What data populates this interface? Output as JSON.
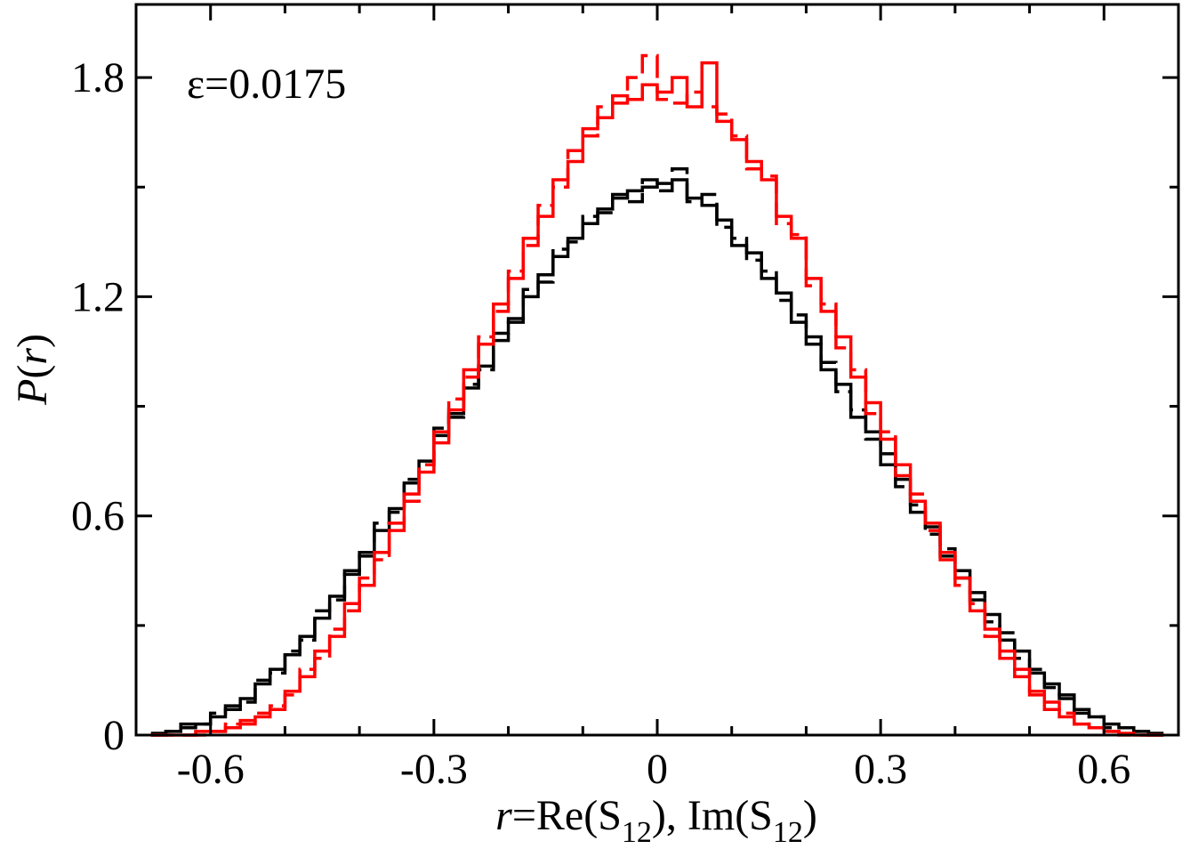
{
  "chart_data": {
    "type": "line",
    "subtype": "step-histogram",
    "title": "",
    "annotation": "ε=0.0175",
    "xlabel_parts": [
      "r",
      "=Re(S",
      "12",
      "), Im(S",
      "12",
      ")"
    ],
    "ylabel_parts": [
      "P",
      "(",
      "r",
      ")"
    ],
    "xlim": [
      -0.7,
      0.7
    ],
    "ylim": [
      0,
      2.0
    ],
    "x_major_ticks": [
      -0.6,
      -0.3,
      0,
      0.3,
      0.6
    ],
    "x_tick_labels": [
      "-0.6",
      "-0.3",
      "0",
      "0.3",
      "0.6"
    ],
    "x_minor_step": 0.1,
    "y_major_ticks": [
      0,
      0.6,
      1.2,
      1.8
    ],
    "y_tick_labels": [
      "0",
      "0.6",
      "1.2",
      "1.8"
    ],
    "y_minor_step": 0.3,
    "grid": false,
    "bin_start": -0.68,
    "bin_width": 0.02,
    "series": [
      {
        "name": "black-solid",
        "color": "#000000",
        "dashed": false,
        "values": [
          0.005,
          0.01,
          0.02,
          0.03,
          0.05,
          0.07,
          0.1,
          0.14,
          0.18,
          0.22,
          0.27,
          0.32,
          0.38,
          0.44,
          0.5,
          0.56,
          0.62,
          0.69,
          0.75,
          0.82,
          0.88,
          0.95,
          1.01,
          1.08,
          1.14,
          1.2,
          1.26,
          1.31,
          1.36,
          1.4,
          1.44,
          1.47,
          1.49,
          1.5,
          1.51,
          1.52,
          1.47,
          1.45,
          1.41,
          1.34,
          1.32,
          1.25,
          1.21,
          1.13,
          1.09,
          1.0,
          0.96,
          0.87,
          0.83,
          0.74,
          0.7,
          0.61,
          0.57,
          0.49,
          0.45,
          0.37,
          0.33,
          0.26,
          0.23,
          0.17,
          0.14,
          0.1,
          0.07,
          0.05,
          0.03,
          0.02,
          0.01,
          0.005
        ]
      },
      {
        "name": "black-dashed",
        "color": "#000000",
        "dashed": true,
        "values": [
          0,
          0.01,
          0.03,
          0.03,
          0.06,
          0.08,
          0.09,
          0.15,
          0.17,
          0.23,
          0.26,
          0.34,
          0.37,
          0.45,
          0.49,
          0.58,
          0.61,
          0.7,
          0.74,
          0.84,
          0.87,
          0.96,
          1.0,
          1.1,
          1.13,
          1.22,
          1.24,
          1.33,
          1.35,
          1.42,
          1.43,
          1.48,
          1.46,
          1.52,
          1.49,
          1.55,
          1.46,
          1.48,
          1.39,
          1.36,
          1.3,
          1.27,
          1.19,
          1.15,
          1.07,
          1.02,
          0.94,
          0.89,
          0.81,
          0.77,
          0.68,
          0.63,
          0.55,
          0.51,
          0.43,
          0.39,
          0.31,
          0.28,
          0.21,
          0.18,
          0.13,
          0.11,
          0.06,
          0.05,
          0.02,
          0.02,
          0.01,
          0
        ]
      },
      {
        "name": "red-solid",
        "color": "#ff0000",
        "dashed": false,
        "values": [
          0,
          0,
          0,
          0.01,
          0.01,
          0.02,
          0.04,
          0.05,
          0.07,
          0.12,
          0.16,
          0.23,
          0.27,
          0.36,
          0.41,
          0.5,
          0.56,
          0.66,
          0.72,
          0.83,
          0.89,
          1.0,
          1.07,
          1.18,
          1.25,
          1.36,
          1.42,
          1.52,
          1.57,
          1.66,
          1.69,
          1.75,
          1.74,
          1.78,
          1.76,
          1.8,
          1.72,
          1.84,
          1.68,
          1.63,
          1.57,
          1.52,
          1.42,
          1.36,
          1.25,
          1.16,
          1.09,
          0.98,
          0.91,
          0.81,
          0.74,
          0.64,
          0.58,
          0.48,
          0.43,
          0.34,
          0.29,
          0.21,
          0.18,
          0.11,
          0.09,
          0.05,
          0.03,
          0.02,
          0.01,
          0.005,
          0,
          0
        ]
      },
      {
        "name": "red-dashed",
        "color": "#ff0000",
        "dashed": true,
        "values": [
          0,
          0,
          0,
          0,
          0.01,
          0.03,
          0.03,
          0.06,
          0.08,
          0.11,
          0.18,
          0.21,
          0.29,
          0.34,
          0.43,
          0.48,
          0.58,
          0.64,
          0.74,
          0.8,
          0.92,
          0.98,
          1.09,
          1.16,
          1.27,
          1.34,
          1.45,
          1.5,
          1.6,
          1.64,
          1.72,
          1.73,
          1.8,
          1.86,
          1.74,
          1.73,
          1.76,
          1.72,
          1.7,
          1.64,
          1.55,
          1.53,
          1.4,
          1.37,
          1.23,
          1.18,
          1.06,
          1.0,
          0.88,
          0.83,
          0.71,
          0.66,
          0.56,
          0.5,
          0.41,
          0.36,
          0.27,
          0.23,
          0.16,
          0.12,
          0.07,
          0.06,
          0.03,
          0.02,
          0.01,
          0,
          0,
          0
        ]
      }
    ]
  }
}
